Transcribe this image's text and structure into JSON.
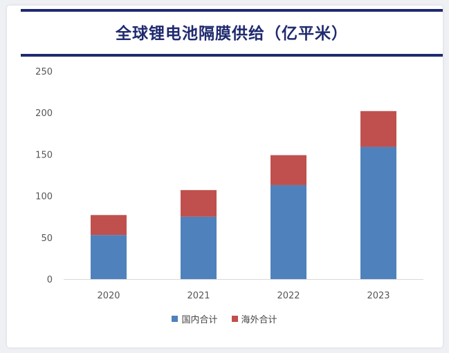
{
  "chart_data": {
    "type": "bar",
    "stacked": true,
    "title": "全球锂电池隔膜供给（亿平米）",
    "categories": [
      "2020",
      "2021",
      "2022",
      "2023"
    ],
    "series": [
      {
        "name": "国内合计",
        "color": "#4f81bd",
        "values": [
          53,
          75,
          113,
          159
        ]
      },
      {
        "name": "海外合计",
        "color": "#c0504d",
        "values": [
          24,
          32,
          36,
          43
        ]
      }
    ],
    "y_ticks": [
      "0",
      "50",
      "100",
      "150",
      "200",
      "250"
    ],
    "ylim": [
      0,
      250
    ],
    "grid": false,
    "legend_position": "bottom",
    "title_color": "#1f2a6e"
  }
}
